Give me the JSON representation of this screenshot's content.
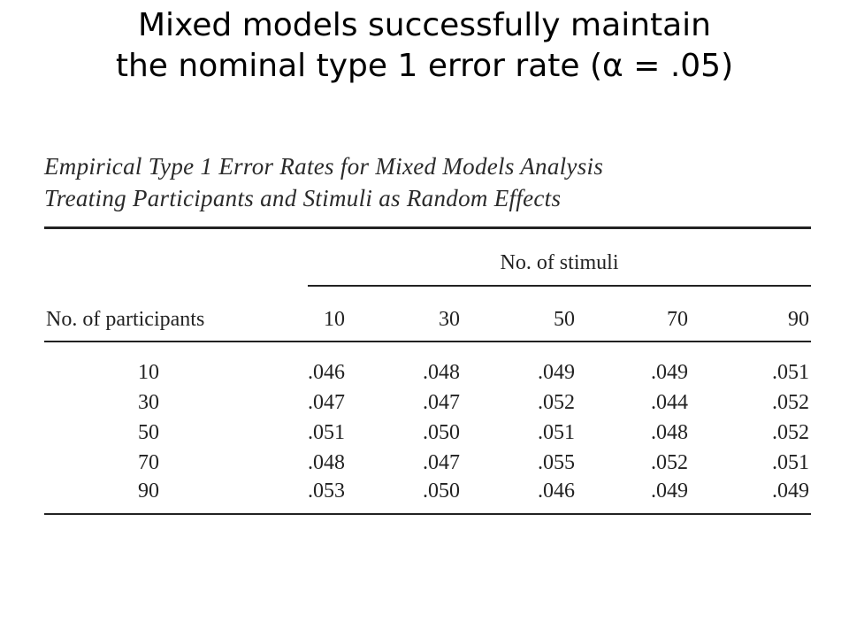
{
  "slide": {
    "title_line1": "Mixed models successfully maintain",
    "title_line2": "the nominal type 1 error rate (α = .05)"
  },
  "table": {
    "caption_line1": "Empirical Type 1 Error Rates for Mixed Models Analysis",
    "caption_line2": "Treating Participants and Stimuli as Random Effects",
    "stimuli_header": "No. of stimuli",
    "participants_header": "No. of participants",
    "columns": [
      "10",
      "30",
      "50",
      "70",
      "90"
    ],
    "rows": [
      {
        "label": "10",
        "values": [
          ".046",
          ".048",
          ".049",
          ".049",
          ".051"
        ]
      },
      {
        "label": "30",
        "values": [
          ".047",
          ".047",
          ".052",
          ".044",
          ".052"
        ]
      },
      {
        "label": "50",
        "values": [
          ".051",
          ".050",
          ".051",
          ".048",
          ".052"
        ]
      },
      {
        "label": "70",
        "values": [
          ".048",
          ".047",
          ".055",
          ".052",
          ".051"
        ]
      },
      {
        "label": "90",
        "values": [
          ".053",
          ".050",
          ".046",
          ".049",
          ".049"
        ]
      }
    ]
  }
}
